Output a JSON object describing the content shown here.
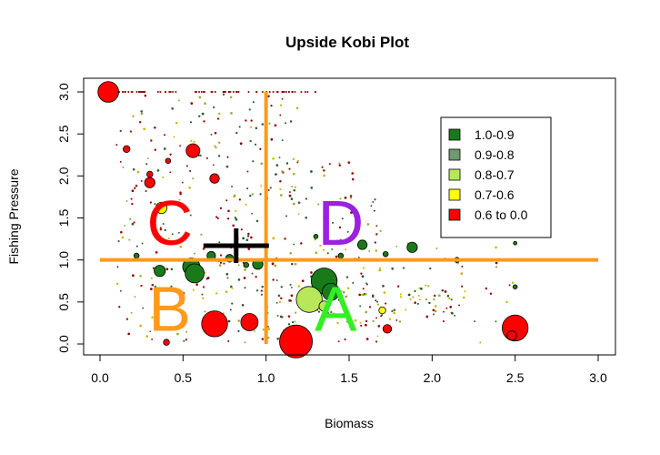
{
  "chart_data": {
    "type": "scatter",
    "title": "Upside Kobi Plot",
    "xlabel": "Biomass",
    "ylabel": "Fishing Pressure",
    "xlim": [
      0,
      3
    ],
    "ylim": [
      0,
      3
    ],
    "x_ticks": [
      "0.0",
      "0.5",
      "1.0",
      "1.5",
      "2.0",
      "2.5",
      "3.0"
    ],
    "y_ticks": [
      "0.0",
      "0.5",
      "1.0",
      "1.5",
      "2.0",
      "2.5",
      "3.0"
    ],
    "grid": false,
    "legend": {
      "placement": "top-right",
      "entries": [
        {
          "label": "1.0-0.9",
          "color": "#1a7a1a"
        },
        {
          "label": "0.9-0.8",
          "color": "#6e9a6e"
        },
        {
          "label": "0.8-0.7",
          "color": "#b8e85a"
        },
        {
          "label": "0.7-0.6",
          "color": "#ffff00"
        },
        {
          "label": "0.6 to 0.0",
          "color": "#ff0000"
        }
      ]
    },
    "reference_lines": {
      "x": 1.0,
      "y": 1.0,
      "color": "#ff9a1a"
    },
    "centroid": {
      "x": 0.82,
      "y": 1.17,
      "color": "#000000"
    },
    "quadrant_labels": [
      {
        "text": "C",
        "x": 0.42,
        "y": 1.45,
        "color": "#ff0000"
      },
      {
        "text": "D",
        "x": 1.45,
        "y": 1.45,
        "color": "#9a22dd"
      },
      {
        "text": "B",
        "x": 0.42,
        "y": 0.43,
        "color": "#ff9a1a"
      },
      {
        "text": "A",
        "x": 1.42,
        "y": 0.43,
        "color": "#33ee22"
      }
    ],
    "points": [
      {
        "x": 0.05,
        "y": 3.0,
        "s": 1.2,
        "c": 4
      },
      {
        "x": 0.56,
        "y": 2.3,
        "s": 0.8,
        "c": 4
      },
      {
        "x": 0.16,
        "y": 2.32,
        "s": 0.4,
        "c": 4
      },
      {
        "x": 0.3,
        "y": 2.02,
        "s": 0.35,
        "c": 4
      },
      {
        "x": 0.41,
        "y": 2.18,
        "s": 0.3,
        "c": 4
      },
      {
        "x": 0.69,
        "y": 1.97,
        "s": 0.55,
        "c": 4
      },
      {
        "x": 0.3,
        "y": 1.92,
        "s": 0.6,
        "c": 4
      },
      {
        "x": 0.37,
        "y": 1.62,
        "s": 0.65,
        "c": 3
      },
      {
        "x": 1.35,
        "y": 0.75,
        "s": 1.5,
        "c": 0
      },
      {
        "x": 1.39,
        "y": 0.62,
        "s": 1.0,
        "c": 0
      },
      {
        "x": 1.26,
        "y": 0.53,
        "s": 1.5,
        "c": 2
      },
      {
        "x": 1.35,
        "y": 0.45,
        "s": 0.6,
        "c": 2
      },
      {
        "x": 1.18,
        "y": 0.03,
        "s": 1.9,
        "c": 4
      },
      {
        "x": 0.69,
        "y": 0.24,
        "s": 1.5,
        "c": 4
      },
      {
        "x": 0.9,
        "y": 0.26,
        "s": 1.0,
        "c": 4
      },
      {
        "x": 0.55,
        "y": 0.92,
        "s": 1.0,
        "c": 0
      },
      {
        "x": 0.57,
        "y": 0.84,
        "s": 1.1,
        "c": 0
      },
      {
        "x": 0.36,
        "y": 0.87,
        "s": 0.65,
        "c": 0
      },
      {
        "x": 0.67,
        "y": 1.05,
        "s": 0.5,
        "c": 0
      },
      {
        "x": 0.78,
        "y": 1.02,
        "s": 0.45,
        "c": 0
      },
      {
        "x": 0.95,
        "y": 0.95,
        "s": 0.6,
        "c": 0
      },
      {
        "x": 1.58,
        "y": 1.18,
        "s": 0.55,
        "c": 0
      },
      {
        "x": 1.88,
        "y": 1.15,
        "s": 0.6,
        "c": 0
      },
      {
        "x": 2.5,
        "y": 0.19,
        "s": 1.5,
        "c": 4
      },
      {
        "x": 2.48,
        "y": 0.1,
        "s": 0.55,
        "c": 4
      },
      {
        "x": 1.73,
        "y": 0.18,
        "s": 0.5,
        "c": 4
      },
      {
        "x": 1.7,
        "y": 0.4,
        "s": 0.4,
        "c": 3
      },
      {
        "x": 2.15,
        "y": 1.0,
        "s": 0.3,
        "c": 0
      },
      {
        "x": 1.72,
        "y": 1.07,
        "s": 0.3,
        "c": 0
      },
      {
        "x": 2.5,
        "y": 0.68,
        "s": 0.25,
        "c": 0
      },
      {
        "x": 1.3,
        "y": 1.28,
        "s": 0.25,
        "c": 0
      },
      {
        "x": 1.45,
        "y": 1.05,
        "s": 0.3,
        "c": 0
      },
      {
        "x": 0.22,
        "y": 1.05,
        "s": 0.3,
        "c": 0
      },
      {
        "x": 0.88,
        "y": 0.94,
        "s": 0.3,
        "c": 0
      },
      {
        "x": 0.4,
        "y": 0.02,
        "s": 0.35,
        "c": 4
      },
      {
        "x": 2.5,
        "y": 1.2,
        "s": 0.2,
        "c": 0
      }
    ],
    "scatter_seed": 17
  }
}
